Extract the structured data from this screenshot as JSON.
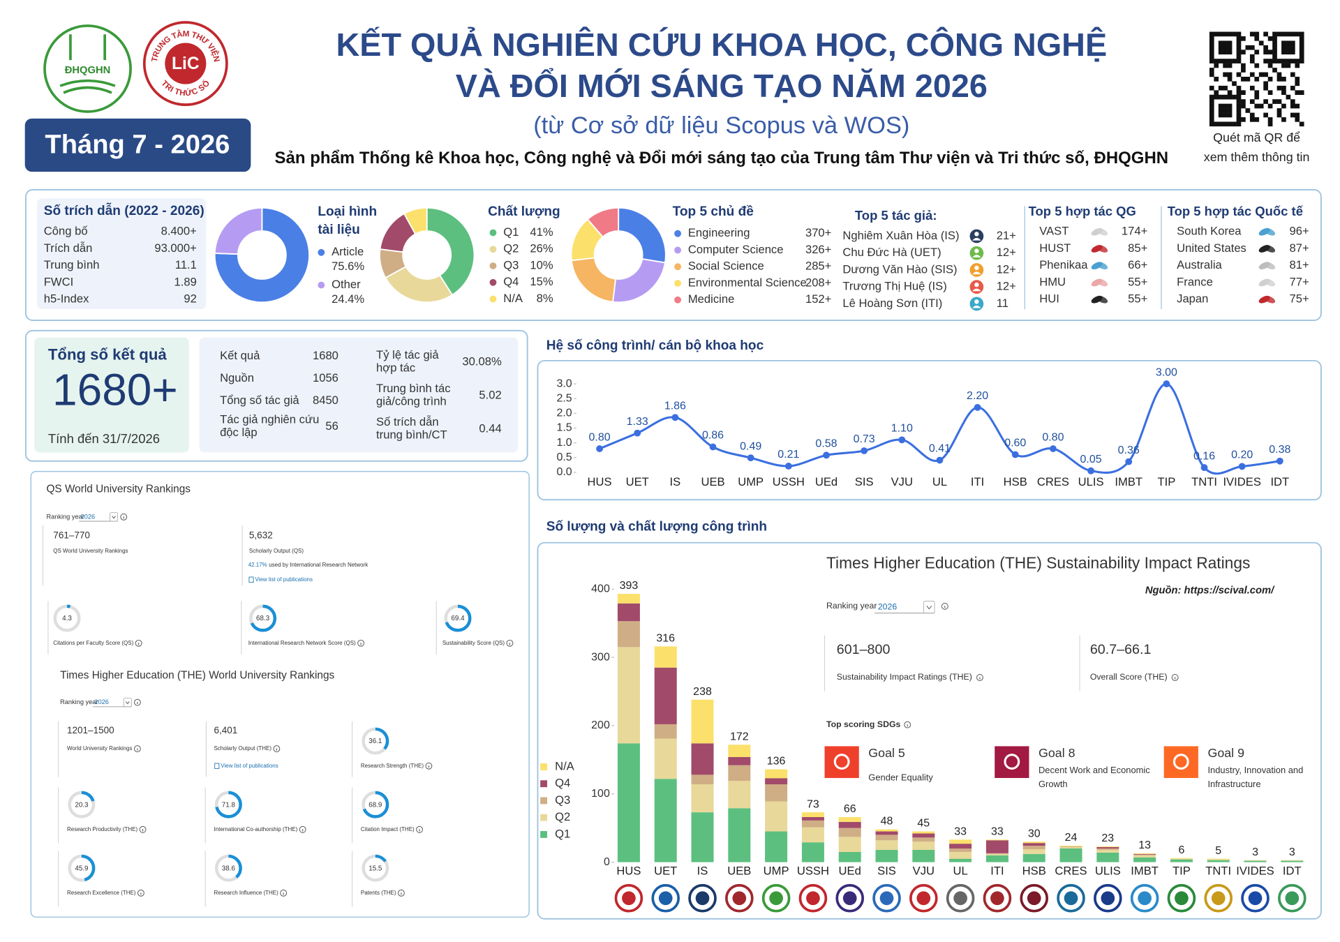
{
  "header": {
    "title_line1": "KẾT QUẢ NGHIÊN CỨU KHOA HỌC, CÔNG NGHỆ",
    "title_line2": "VÀ ĐỔI MỚI SÁNG TẠO NĂM 2026",
    "subtitle": "(từ Cơ sở dữ liệu Scopus và WOS)",
    "tagline": "Sản phẩm Thống kê Khoa học, Công nghệ và Đổi mới sáng tạo của Trung tâm Thư viện và Tri thức số, ĐHQGHN",
    "month": "Tháng 7 - 2026",
    "qr_caption": [
      "Quét mã QR để",
      "xem thêm thông tin"
    ],
    "logo_left": "ĐHQGHN",
    "logo_right_top": "TRUNG TÂM THƯ VIỆN",
    "logo_right_mid": "LiC",
    "logo_right_bottom": "TRI THỨC SỐ"
  },
  "citations": {
    "title": "Số trích dẫn (2022 - 2026)",
    "rows": [
      [
        "Công bố",
        "8.400+"
      ],
      [
        "Trích dẫn",
        "93.000+"
      ],
      [
        "Trung bình",
        "11.1"
      ],
      [
        "FWCI",
        "1.89"
      ],
      [
        "h5-Index",
        "92"
      ]
    ]
  },
  "top_authors": {
    "title": "Top 5 tác giả:",
    "rows": [
      [
        "Nghiêm Xuân Hòa (IS)",
        "21+"
      ],
      [
        "Chu Đức Hà (UET)",
        "12+"
      ],
      [
        "Dương Văn Hào (SIS)",
        "12+"
      ],
      [
        "Trương Thị Huệ (IS)",
        "12+"
      ],
      [
        "Lê Hoàng Sơn (ITI)",
        "11"
      ]
    ]
  },
  "top_domestic": {
    "title": "Top 5 hợp tác QG",
    "rows": [
      [
        "VAST",
        "174+"
      ],
      [
        "HUST",
        "85+"
      ],
      [
        "Phenikaa",
        "66+"
      ],
      [
        "HMU",
        "55+"
      ],
      [
        "HUI",
        "55+"
      ]
    ]
  },
  "top_international": {
    "title": "Top 5 hợp tác Quốc tế",
    "rows": [
      [
        "South Korea",
        "96+"
      ],
      [
        "United States",
        "87+"
      ],
      [
        "Australia",
        "81+"
      ],
      [
        "France",
        "77+"
      ],
      [
        "Japan",
        "75+"
      ]
    ]
  },
  "total": {
    "title": "Tổng số kết quả",
    "value": "1680+",
    "note": "Tính đến 31/7/2026"
  },
  "stats": {
    "left": [
      [
        "Kết quả",
        "1680"
      ],
      [
        "Nguồn",
        "1056"
      ],
      [
        "Tổng số tác giả",
        "8450"
      ],
      [
        "Tác giả nghiên cứu độc lập",
        "56"
      ]
    ],
    "right": [
      [
        "Tỷ lệ tác giả hợp tác",
        "30.08%"
      ],
      [
        "Trung bình tác giả/công trình",
        "5.02"
      ],
      [
        "Số trích dẫn trung bình/CT",
        "0.44"
      ]
    ]
  },
  "qs": {
    "title": "QS World University Rankings",
    "ranking_year_label": "Ranking year",
    "ranking_year": "2026",
    "rank": "761–770",
    "rank_label": "QS World University Rankings",
    "output": "5,632",
    "output_label": "Scholarly Output (QS)",
    "network_share": "42.17%",
    "network_text": "used by International Research Network",
    "publications_link": "View list of publications",
    "gauges": [
      {
        "value": 4.3,
        "label": "Citations per Faculty Score (QS)"
      },
      {
        "value": 68.3,
        "label": "International Research Network Score (QS)"
      },
      {
        "value": 69.4,
        "label": "Sustainability Score (QS)"
      }
    ]
  },
  "the_world": {
    "title": "Times Higher Education (THE) World University Rankings",
    "ranking_year_label": "Ranking year",
    "ranking_year": "2026",
    "rank": "1201–1500",
    "rank_label": "World University Rankings",
    "output": "6,401",
    "output_label": "Scholarly Output (THE)",
    "publications_link": "View list of publications",
    "gauges": [
      {
        "value": 36.1,
        "label": "Research Strength (THE)"
      },
      {
        "value": 20.3,
        "label": "Research Productivity (THE)"
      },
      {
        "value": 71.8,
        "label": "International Co-authorship (THE)"
      },
      {
        "value": 68.9,
        "label": "Citation Impact (THE)"
      },
      {
        "value": 45.9,
        "label": "Research Excellence (THE)"
      },
      {
        "value": 38.6,
        "label": "Research Influence (THE)"
      },
      {
        "value": 15.5,
        "label": "Patents (THE)"
      }
    ]
  },
  "the_impact": {
    "title": "Times Higher Education (THE) Sustainability Impact Ratings",
    "source": "Nguồn: https://scival.com/",
    "ranking_year_label": "Ranking year",
    "ranking_year": "2026",
    "rating": "601–800",
    "rating_label": "Sustainability Impact Ratings (THE)",
    "score": "60.7–66.1",
    "score_label": "Overall Score (THE)",
    "sdg_title": "Top scoring SDGs",
    "goals": [
      {
        "title": "Goal 5",
        "text": "Gender Equality",
        "color": "#ef402b"
      },
      {
        "title": "Goal 8",
        "text": "Decent Work and Economic Growth",
        "color": "#a21942"
      },
      {
        "title": "Goal 9",
        "text": "Industry, Innovation and Infrastructure",
        "color": "#fd6925"
      }
    ]
  },
  "chart_data": [
    {
      "type": "donut",
      "title": "Loại hình tài liệu",
      "categories": [
        "Article",
        "Other"
      ],
      "values": [
        75.6,
        24.4
      ],
      "value_labels": [
        "75.6%",
        "24.4%"
      ],
      "colors": [
        "#4a7fe6",
        "#b59cf2"
      ]
    },
    {
      "type": "donut",
      "title": "Chất lượng",
      "categories": [
        "Q1",
        "Q2",
        "Q3",
        "Q4",
        "N/A"
      ],
      "values": [
        41,
        26,
        10,
        15,
        8
      ],
      "value_labels": [
        "41%",
        "26%",
        "10%",
        "15%",
        "8%"
      ],
      "colors": [
        "#5cbf7f",
        "#e8d89a",
        "#cfae85",
        "#a14a6a",
        "#fbe06b"
      ]
    },
    {
      "type": "donut",
      "title": "Top 5 chủ đề",
      "categories": [
        "Engineering",
        "Computer Science",
        "Social Science",
        "Environmental Science",
        "Medicine"
      ],
      "values": [
        370,
        326,
        285,
        208,
        152
      ],
      "value_labels": [
        "370+",
        "326+",
        "285+",
        "208+",
        "152+"
      ],
      "colors": [
        "#4a7fe6",
        "#b59cf2",
        "#f5b562",
        "#fbe06b",
        "#f07a86"
      ]
    },
    {
      "type": "line",
      "title": "Hệ số công trình/ cán bộ khoa học",
      "categories": [
        "HUS",
        "UET",
        "IS",
        "UEB",
        "UMP",
        "USSH",
        "UEd",
        "SIS",
        "VJU",
        "UL",
        "ITI",
        "HSB",
        "CRES",
        "ULIS",
        "IMBT",
        "TIP",
        "TNTI",
        "IVIDES",
        "IDT"
      ],
      "values": [
        0.8,
        1.33,
        1.86,
        0.86,
        0.49,
        0.21,
        0.58,
        0.73,
        1.1,
        0.41,
        2.2,
        0.6,
        0.8,
        0.05,
        0.36,
        3,
        0.16,
        0.2,
        0.38
      ],
      "value_labels": [
        "0.80",
        "1.33",
        "1.86",
        "0.86",
        "0.49",
        "0.21",
        "0.58",
        "0.73",
        "1.10",
        "0.41",
        "2.20",
        "0.60",
        "0.80",
        "0.05",
        "0.36",
        "3.00",
        "0.16",
        "0.20",
        "0.38"
      ],
      "color": "#3b6fe0",
      "smooth": true,
      "ylim": [
        0,
        3
      ],
      "yticks": [
        {
          "value": 0,
          "label": "0.0"
        },
        0.5,
        {
          "value": 1,
          "label": "1.0"
        },
        1.5,
        {
          "value": 2,
          "label": "2.0"
        },
        2.5,
        {
          "value": 3,
          "label": "3.0"
        }
      ]
    },
    {
      "type": "bar",
      "stacked": true,
      "title": "Số lượng và chất lượng công trình",
      "categories": [
        "HUS",
        "UET",
        "IS",
        "UEB",
        "UMP",
        "USSH",
        "UEd",
        "SIS",
        "VJU",
        "UL",
        "ITI",
        "HSB",
        "CRES",
        "ULIS",
        "IMBT",
        "TIP",
        "TNTI",
        "IVIDES",
        "IDT"
      ],
      "series": [
        {
          "name": "Q1",
          "color": "#5cbf7f",
          "values": [
            174,
            122,
            73,
            79,
            45,
            29,
            15,
            18,
            18,
            5,
            10,
            12,
            20,
            14,
            7,
            4,
            3,
            2,
            2
          ]
        },
        {
          "name": "Q2",
          "color": "#e8d89a",
          "values": [
            141,
            59,
            41,
            40,
            44,
            22,
            22,
            14,
            12,
            10,
            2,
            7,
            2,
            4,
            3,
            1,
            1,
            1,
            1
          ]
        },
        {
          "name": "Q3",
          "color": "#cfae85",
          "values": [
            38,
            21,
            14,
            23,
            25,
            10,
            13,
            8,
            6,
            5,
            1,
            5,
            1,
            2,
            1,
            0,
            0,
            0,
            0
          ]
        },
        {
          "name": "Q4",
          "color": "#a14a6a",
          "values": [
            26,
            83,
            46,
            12,
            9,
            5,
            9,
            5,
            6,
            7,
            19,
            4,
            0,
            2,
            1,
            0,
            0,
            0,
            0
          ]
        },
        {
          "name": "N/A",
          "color": "#fbe06b",
          "values": [
            14,
            31,
            64,
            18,
            13,
            7,
            7,
            3,
            3,
            6,
            1,
            2,
            1,
            1,
            1,
            1,
            1,
            0,
            0
          ]
        }
      ],
      "totals": [
        393,
        316,
        238,
        172,
        136,
        73,
        66,
        48,
        45,
        33,
        33,
        30,
        24,
        23,
        13,
        6,
        5,
        3,
        3
      ],
      "ylim": [
        0,
        400
      ],
      "yticks": [
        0,
        100,
        200,
        300,
        400
      ]
    }
  ]
}
